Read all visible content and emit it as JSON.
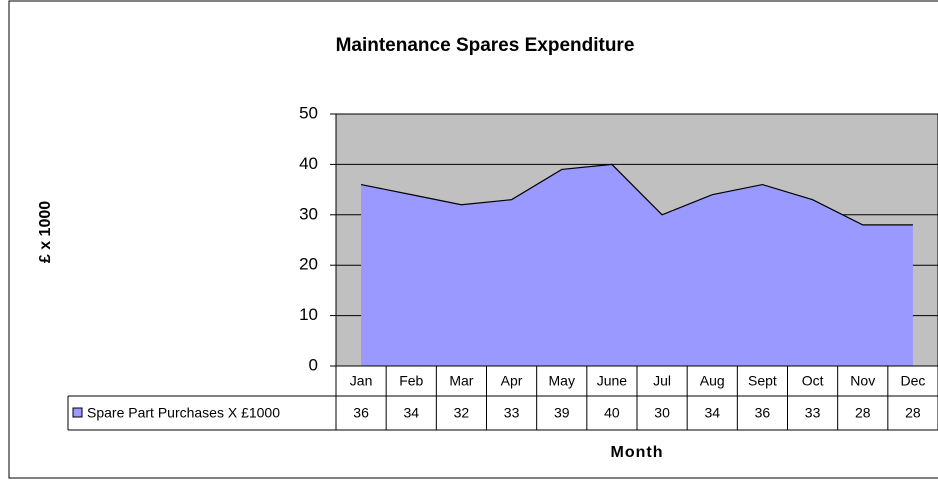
{
  "chart_data": {
    "type": "area",
    "title": "Maintenance Spares Expenditure",
    "y_label": "£ x 1000",
    "x_label": "Month",
    "categories": [
      "Jan",
      "Feb",
      "Mar",
      "Apr",
      "May",
      "June",
      "Jul",
      "Aug",
      "Sept",
      "Oct",
      "Nov",
      "Dec"
    ],
    "series": [
      {
        "name": "Spare Part Purchases X £1000",
        "color": "#9999ff",
        "values": [
          36,
          34,
          32,
          33,
          39,
          40,
          30,
          34,
          36,
          33,
          28,
          28
        ]
      }
    ],
    "ylim": [
      0,
      50
    ],
    "yticks": [
      0,
      10,
      20,
      30,
      40,
      50
    ],
    "grid": true,
    "plot_background": "#c0c0c0"
  }
}
